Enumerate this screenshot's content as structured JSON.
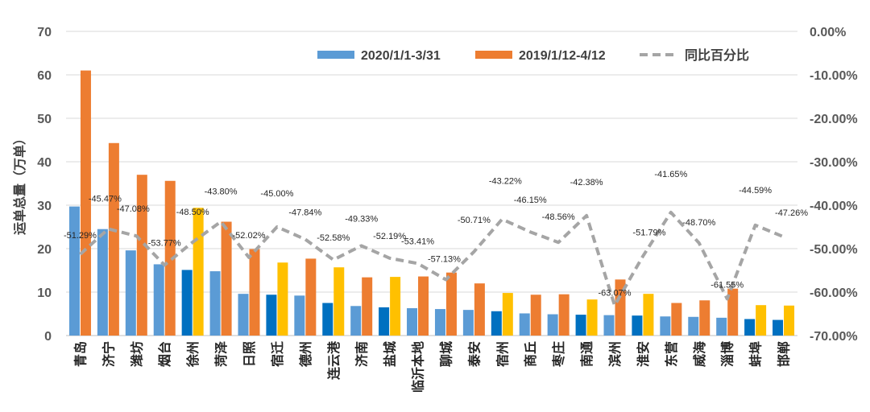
{
  "chart_data": {
    "type": "bar",
    "ylabel": "运单总量（万单）",
    "ylim": [
      0,
      70
    ],
    "y_ticks": [
      "0",
      "10",
      "20",
      "30",
      "40",
      "50",
      "60",
      "70"
    ],
    "y2lim": [
      -0.7,
      0
    ],
    "y2_ticks": [
      "0.00%",
      "-10.00%",
      "-20.00%",
      "-30.00%",
      "-40.00%",
      "-50.00%",
      "-60.00%",
      "-70.00%"
    ],
    "categories": [
      "青岛",
      "济宁",
      "潍坊",
      "烟台",
      "徐州",
      "菏泽",
      "日照",
      "宿迁",
      "德州",
      "连云港",
      "济南",
      "盐城",
      "临沂本地",
      "聊城",
      "泰安",
      "宿州",
      "商丘",
      "枣庄",
      "南通",
      "滨州",
      "淮安",
      "东营",
      "威海",
      "淄博",
      "蚌埠",
      "邯郸"
    ],
    "series": [
      {
        "name": "2020/1/1-3/31",
        "type": "bar",
        "color": "#5b9bd5",
        "values": [
          29.7,
          24.5,
          19.6,
          16.4,
          15.1,
          14.8,
          9.6,
          9.4,
          9.2,
          7.5,
          6.8,
          6.5,
          6.3,
          6.1,
          5.9,
          5.6,
          5.1,
          4.9,
          4.8,
          4.7,
          4.6,
          4.4,
          4.3,
          4.1,
          3.8,
          3.6
        ]
      },
      {
        "name": "2019/1/12-4/12",
        "type": "bar",
        "color": "#ed7d31",
        "values": [
          61.0,
          44.3,
          37.0,
          35.6,
          29.4,
          26.2,
          19.9,
          16.8,
          17.7,
          15.7,
          13.4,
          13.5,
          13.6,
          14.5,
          12.0,
          9.8,
          9.4,
          9.5,
          8.3,
          12.9,
          9.6,
          7.5,
          8.1,
          10.8,
          7.0,
          6.9
        ]
      },
      {
        "name": "同比百分比",
        "type": "line",
        "dashed": true,
        "color": "#a5a5a5",
        "values": [
          -0.5129,
          -0.4547,
          -0.4708,
          -0.5377,
          -0.485,
          -0.438,
          -0.5202,
          -0.45,
          -0.4784,
          -0.5258,
          -0.4933,
          -0.5219,
          -0.5341,
          -0.5713,
          -0.5071,
          -0.4322,
          -0.4615,
          -0.4856,
          -0.4238,
          -0.6307,
          -0.5179,
          -0.4165,
          -0.487,
          -0.6155,
          -0.4459,
          -0.4726
        ],
        "labels": [
          "-51.29%",
          "-45.47%",
          "-47.08%",
          "-53.77%",
          "-48.50%",
          "-43.80%",
          "-52.02%",
          "-45.00%",
          "-47.84%",
          "-52.58%",
          "-49.33%",
          "-52.19%",
          "-53.41%",
          "-57.13%",
          "-50.71%",
          "-43.22%",
          "-46.15%",
          "-48.56%",
          "-42.38%",
          "-63.07%",
          "-51.79%",
          "-41.65%",
          "-48.70%",
          "-61.55%",
          "-44.59%",
          "-47.26%"
        ]
      }
    ],
    "bar_highlight": {
      "dark_blue": "#0070c0",
      "yellow": "#ffc000",
      "categories": [
        "徐州",
        "宿迁",
        "连云港",
        "盐城",
        "宿州",
        "南通",
        "淮安",
        "蚌埠",
        "邯郸"
      ]
    },
    "grid": "horizontal",
    "legend_position": "top-right"
  }
}
